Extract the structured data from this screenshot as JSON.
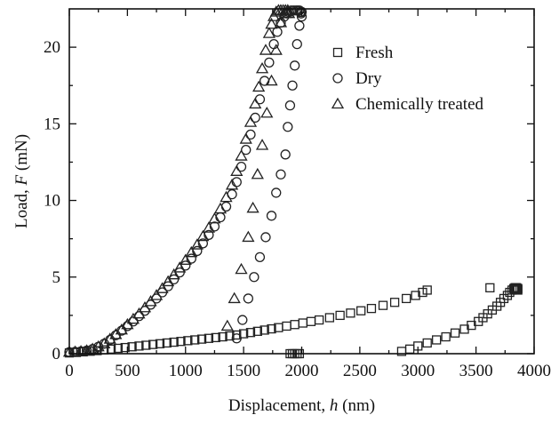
{
  "chart_data": {
    "type": "scatter",
    "xlabel": "Displacement, h (nm)",
    "xlabel_parts": {
      "prefix": "Displacement, ",
      "symbol": "h",
      "suffix": " (nm)"
    },
    "ylabel": "Load, F (mN)",
    "ylabel_parts": {
      "prefix": "Load, ",
      "symbol": "F",
      "suffix": " (mN)"
    },
    "xlim": [
      0,
      4000
    ],
    "ylim": [
      0,
      22.5
    ],
    "xticks": [
      "0",
      "500",
      "1000",
      "1500",
      "2000",
      "2500",
      "3000",
      "3500",
      "4000"
    ],
    "yticks": [
      "0",
      "5",
      "10",
      "15",
      "20"
    ],
    "grid": false,
    "legend_position": "top-right",
    "series": [
      {
        "name": "Fresh",
        "marker": "square",
        "x": [
          0,
          60,
          120,
          180,
          240,
          300,
          360,
          420,
          480,
          540,
          600,
          660,
          720,
          780,
          840,
          900,
          960,
          1020,
          1080,
          1140,
          1200,
          1260,
          1320,
          1380,
          1440,
          1500,
          1560,
          1620,
          1680,
          1740,
          1800,
          1870,
          1940,
          2010,
          2080,
          2150,
          2240,
          2330,
          2420,
          2510,
          2600,
          2700,
          2800,
          2900,
          2980,
          3040,
          3080,
          1900,
          1920,
          1940,
          1960,
          1980,
          2860,
          2930,
          3000,
          3080,
          3160,
          3240,
          3320,
          3400,
          3460,
          3520,
          3560,
          3600,
          3640,
          3680,
          3710,
          3740,
          3770,
          3790,
          3810,
          3825,
          3835,
          3845,
          3850,
          3855,
          3860,
          3620,
          3830,
          3840,
          3850,
          3860
        ],
        "y": [
          0.05,
          0.08,
          0.12,
          0.16,
          0.2,
          0.25,
          0.3,
          0.35,
          0.4,
          0.45,
          0.5,
          0.55,
          0.6,
          0.65,
          0.7,
          0.75,
          0.8,
          0.85,
          0.9,
          0.95,
          1.0,
          1.05,
          1.1,
          1.16,
          1.22,
          1.3,
          1.38,
          1.46,
          1.54,
          1.62,
          1.7,
          1.8,
          1.9,
          2.0,
          2.1,
          2.2,
          2.35,
          2.5,
          2.65,
          2.8,
          2.95,
          3.15,
          3.35,
          3.6,
          3.8,
          4.0,
          4.15,
          0,
          0,
          0,
          0,
          0,
          0.15,
          0.3,
          0.5,
          0.7,
          0.9,
          1.1,
          1.35,
          1.6,
          1.85,
          2.1,
          2.35,
          2.6,
          2.85,
          3.1,
          3.35,
          3.6,
          3.8,
          4.0,
          4.15,
          4.25,
          4.3,
          4.3,
          4.25,
          4.2,
          4.15,
          4.3,
          4.2,
          4.3,
          4.3,
          4.25
        ]
      },
      {
        "name": "Dry",
        "marker": "circle",
        "x": [
          0,
          50,
          100,
          150,
          200,
          250,
          300,
          350,
          400,
          450,
          500,
          550,
          600,
          650,
          700,
          750,
          800,
          850,
          900,
          950,
          1000,
          1050,
          1100,
          1150,
          1200,
          1250,
          1300,
          1350,
          1400,
          1440,
          1480,
          1520,
          1560,
          1600,
          1640,
          1680,
          1720,
          1760,
          1790,
          1820,
          1850,
          1870,
          1890,
          1910,
          1930,
          1950,
          1965,
          1980,
          1990,
          1995,
          2000,
          1440,
          1490,
          1540,
          1590,
          1640,
          1690,
          1740,
          1780,
          1820,
          1860,
          1880,
          1900,
          1920,
          1940,
          1960,
          1980,
          2000
        ],
        "y": [
          0.1,
          0.12,
          0.15,
          0.2,
          0.3,
          0.45,
          0.65,
          0.9,
          1.2,
          1.5,
          1.8,
          2.1,
          2.45,
          2.8,
          3.2,
          3.6,
          4.0,
          4.4,
          4.85,
          5.3,
          5.75,
          6.2,
          6.7,
          7.2,
          7.75,
          8.3,
          8.9,
          9.6,
          10.4,
          11.2,
          12.2,
          13.3,
          14.3,
          15.4,
          16.6,
          17.8,
          19.0,
          20.2,
          21.0,
          21.6,
          22.0,
          22.2,
          22.3,
          22.4,
          22.4,
          22.4,
          22.4,
          22.4,
          22.3,
          22.2,
          22.0,
          1.0,
          2.2,
          3.6,
          5.0,
          6.3,
          7.6,
          9.0,
          10.5,
          11.7,
          13.0,
          14.8,
          16.2,
          17.5,
          18.8,
          20.2,
          21.4,
          22.3
        ]
      },
      {
        "name": "Chemically treated",
        "marker": "triangle",
        "x": [
          0,
          50,
          100,
          150,
          200,
          250,
          300,
          350,
          400,
          450,
          500,
          550,
          600,
          650,
          700,
          750,
          800,
          850,
          900,
          950,
          1000,
          1050,
          1100,
          1150,
          1200,
          1250,
          1300,
          1350,
          1400,
          1440,
          1480,
          1520,
          1560,
          1600,
          1630,
          1660,
          1690,
          1720,
          1740,
          1760,
          1780,
          1800,
          1820,
          1840,
          1860,
          1880,
          1890,
          1360,
          1420,
          1480,
          1540,
          1580,
          1620,
          1660,
          1700,
          1740,
          1780,
          1820,
          1860,
          1880
        ],
        "y": [
          0.1,
          0.12,
          0.15,
          0.2,
          0.3,
          0.45,
          0.65,
          0.95,
          1.25,
          1.55,
          1.9,
          2.25,
          2.6,
          3.0,
          3.4,
          3.8,
          4.25,
          4.7,
          5.15,
          5.6,
          6.1,
          6.6,
          7.1,
          7.65,
          8.2,
          8.8,
          9.45,
          10.2,
          11.0,
          11.9,
          12.9,
          14.0,
          15.1,
          16.3,
          17.4,
          18.6,
          19.8,
          20.9,
          21.5,
          22.0,
          22.3,
          22.4,
          22.4,
          22.4,
          22.4,
          22.3,
          22.2,
          1.8,
          3.6,
          5.5,
          7.6,
          9.5,
          11.7,
          13.6,
          15.7,
          17.8,
          19.8,
          21.6,
          22.2,
          22.4
        ]
      }
    ]
  }
}
